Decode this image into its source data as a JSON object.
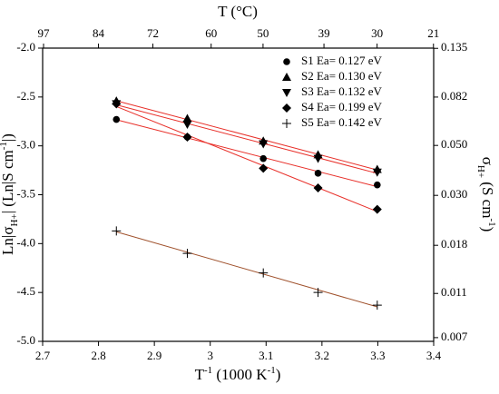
{
  "chart_data": {
    "type": "scatter",
    "x2label": "T (°C)",
    "xlabel": [
      "T",
      "-1",
      " (1000 K",
      "-1",
      ")"
    ],
    "ylabel": [
      "Ln|σ",
      "H+",
      "| (Ln|S cm",
      "-1",
      "|)"
    ],
    "y2label": [
      "σ",
      "H+",
      " (S cm",
      "-1",
      ")"
    ],
    "x": [
      2.832,
      2.959,
      3.095,
      3.193,
      3.299
    ],
    "series": [
      {
        "name": "S1 Ea= 0.127 eV",
        "marker": "circle",
        "color": "#000000",
        "fit_color": "#e8302a",
        "values": [
          -2.73,
          -2.91,
          -3.13,
          -3.28,
          -3.4
        ]
      },
      {
        "name": "S2 Ea= 0.130 eV",
        "marker": "triangle",
        "color": "#000000",
        "fit_color": "#e8302a",
        "values": [
          -2.54,
          -2.72,
          -2.95,
          -3.09,
          -3.24
        ]
      },
      {
        "name": "S3 Ea= 0.132 eV",
        "marker": "triangle-down",
        "color": "#000000",
        "fit_color": "#e8302a",
        "values": [
          -2.57,
          -2.78,
          -2.98,
          -3.13,
          -3.27
        ]
      },
      {
        "name": "S4 Ea= 0.199 eV",
        "marker": "diamond",
        "color": "#000000",
        "fit_color": "#e8302a",
        "values": [
          -2.57,
          -2.91,
          -3.23,
          -3.43,
          -3.65
        ]
      },
      {
        "name": "S5 Ea= 0.142 eV",
        "marker": "plus",
        "color": "#000000",
        "fit_color": "#a0522d",
        "values": [
          -3.87,
          -4.1,
          -4.3,
          -4.5,
          -4.63
        ]
      }
    ],
    "xlim": [
      2.7,
      3.4
    ],
    "xticks": [
      2.7,
      2.8,
      2.9,
      3.0,
      3.1,
      3.2,
      3.3,
      3.4
    ],
    "x2ticks": [
      97,
      84,
      72,
      60,
      50,
      39,
      30,
      21
    ],
    "ylim": [
      -5.0,
      -2.0
    ],
    "yticks": [
      {
        "value": -5.0,
        "label": "-5.0"
      },
      {
        "value": -4.5,
        "label": "-4.5"
      },
      {
        "value": -4.0,
        "label": "-4.0"
      },
      {
        "value": -3.5,
        "label": "-3.5"
      },
      {
        "value": -3.0,
        "label": "-3.0"
      },
      {
        "value": -2.5,
        "label": "-2.5"
      },
      {
        "value": -2.0,
        "label": "-2.0"
      }
    ],
    "y2_log": true,
    "y2lim": [
      0.006738,
      0.1353
    ],
    "y2ticks": [
      0.007,
      0.011,
      0.018,
      {
        "value": 0.03,
        "label": "0.030"
      },
      {
        "value": 0.05,
        "label": "0.050"
      },
      0.082,
      0.135
    ],
    "legend": "upper right"
  }
}
